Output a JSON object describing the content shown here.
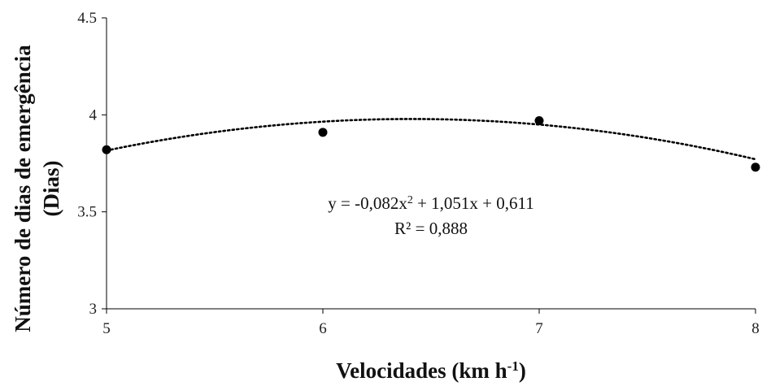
{
  "chart_data": {
    "type": "scatter",
    "title": "",
    "xlabel": "Velocidades (km h",
    "xlabel_sup": "-1",
    "xlabel_end": ")",
    "ylabel_line1": "Número de dias de emergência",
    "ylabel_line2": "(Dias)",
    "x_ticks": [
      "5",
      "6",
      "7",
      "8"
    ],
    "y_ticks": [
      "3",
      "3.5",
      "4",
      "4.5"
    ],
    "xlim": [
      5,
      8
    ],
    "ylim": [
      3,
      4.5
    ],
    "grid": false,
    "points": [
      {
        "x": 5,
        "y": 3.82
      },
      {
        "x": 6,
        "y": 3.91
      },
      {
        "x": 7,
        "y": 3.97
      },
      {
        "x": 8,
        "y": 3.73
      }
    ],
    "trendline": {
      "type": "polynomial",
      "coefficients": {
        "a": -0.082,
        "b": 1.051,
        "c": 0.611
      },
      "style": "dotted"
    },
    "equation_text": {
      "eq_part1": "y = -0,082x",
      "eq_sup": "2",
      "eq_part2": " + 1,051x + 0,611",
      "r2": "R² = 0,888"
    },
    "colors": {
      "marker": "#000000",
      "axis": "#000000",
      "trend": "#000000"
    }
  }
}
